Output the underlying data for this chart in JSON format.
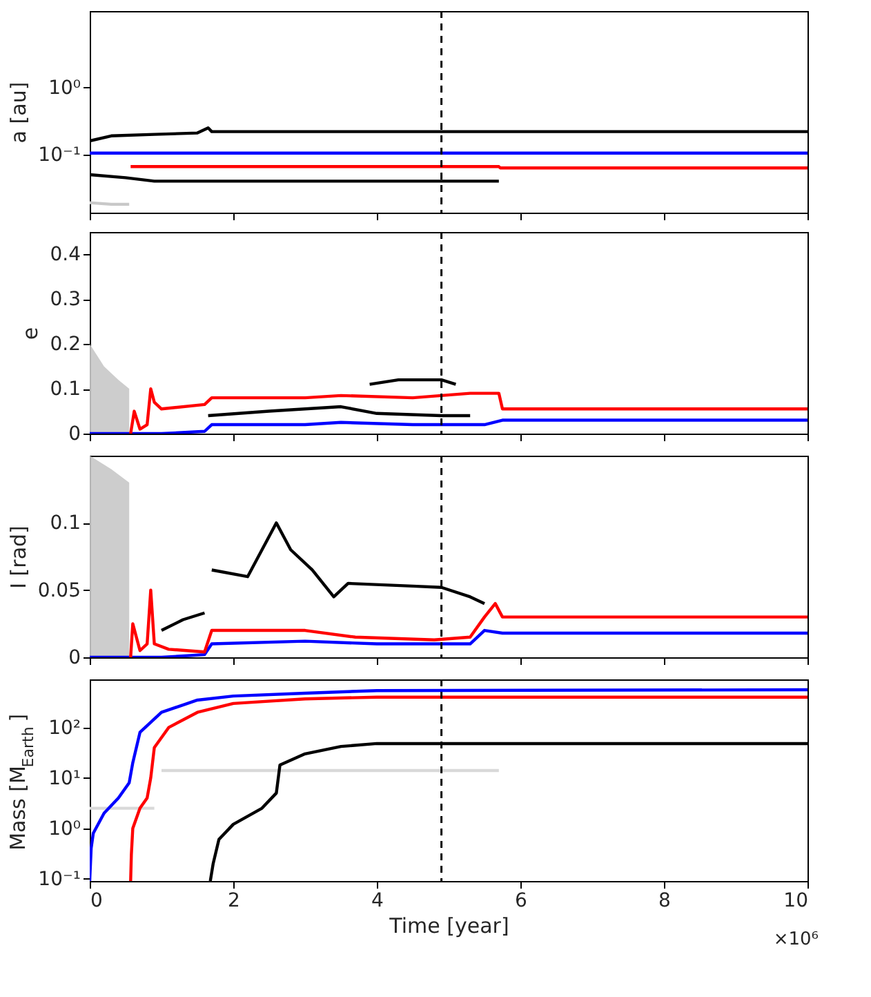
{
  "chart_data": [
    {
      "type": "line",
      "ylabel": "a [au]",
      "log": "y",
      "xlim": [
        0,
        10
      ],
      "xticks": [
        0,
        2,
        4,
        6,
        8,
        10
      ],
      "ylim": [
        0.0135,
        14
      ],
      "yticks": [
        {
          "value": 0.1,
          "label": "10⁻¹"
        },
        {
          "value": 1,
          "label": "10⁰"
        }
      ],
      "tick_labels": "y",
      "grid": false,
      "ref_lines": [
        {
          "axis": "x",
          "value": 4.9,
          "color": "#000000",
          "line_style": "dashed"
        }
      ],
      "series": [
        {
          "color": "#c8c8c8",
          "x": [
            0,
            0.3,
            0.55
          ],
          "values": [
            0.019,
            0.018,
            0.018
          ]
        },
        {
          "color": "#000000",
          "x": [
            0,
            0.3,
            0.9,
            1.5,
            1.65,
            1.7,
            5,
            10
          ],
          "values": [
            0.16,
            0.19,
            0.2,
            0.21,
            0.25,
            0.22,
            0.22,
            0.22
          ]
        },
        {
          "color": "#000000",
          "x": [
            0,
            0.5,
            0.9,
            3,
            5.7
          ],
          "values": [
            0.05,
            0.045,
            0.04,
            0.04,
            0.04
          ]
        },
        {
          "color": "#0000ff",
          "x": [
            0,
            2,
            4,
            6,
            8,
            10
          ],
          "values": [
            0.105,
            0.105,
            0.105,
            0.105,
            0.105,
            0.105
          ]
        },
        {
          "color": "#ff0000",
          "x": [
            0.57,
            2,
            4,
            5.7,
            5.72,
            8,
            10
          ],
          "values": [
            0.066,
            0.066,
            0.066,
            0.066,
            0.063,
            0.063,
            0.063
          ]
        }
      ]
    },
    {
      "type": "line",
      "ylabel": "e",
      "xlim": [
        0,
        10
      ],
      "xticks": [
        0,
        2,
        4,
        6,
        8,
        10
      ],
      "ylim": [
        0,
        0.45
      ],
      "yticks": [
        0,
        0.1,
        0.2,
        0.3,
        0.4
      ],
      "tick_labels": "y",
      "grid": false,
      "ref_lines": [
        {
          "axis": "x",
          "value": 4.9,
          "color": "#000000",
          "line_style": "dashed"
        }
      ],
      "series": [
        {
          "type": "area",
          "color": "#c8c8c8",
          "x": [
            0,
            0.2,
            0.4,
            0.55
          ],
          "values": [
            0.2,
            0.15,
            0.12,
            0.1
          ]
        },
        {
          "color": "#000000",
          "x": [
            1.65,
            2.5,
            3.5,
            4,
            4.9,
            5.3
          ],
          "values": [
            0.04,
            0.05,
            0.06,
            0.045,
            0.04,
            0.04
          ]
        },
        {
          "color": "#000000",
          "x": [
            3.9,
            4.3,
            4.9,
            5.1
          ],
          "values": [
            0.11,
            0.12,
            0.12,
            0.11
          ]
        },
        {
          "color": "#0000ff",
          "x": [
            0,
            1,
            1.6,
            1.7,
            3,
            3.5,
            4.5,
            5.5,
            5.75,
            8,
            10
          ],
          "values": [
            0,
            0,
            0.005,
            0.02,
            0.02,
            0.025,
            0.02,
            0.02,
            0.03,
            0.03,
            0.03
          ]
        },
        {
          "color": "#ff0000",
          "x": [
            0.57,
            0.62,
            0.7,
            0.8,
            0.85,
            0.9,
            1,
            1.6,
            1.7,
            3,
            3.5,
            4.5,
            5.3,
            5.7,
            5.75,
            8,
            10
          ],
          "values": [
            0,
            0.05,
            0.01,
            0.02,
            0.1,
            0.07,
            0.055,
            0.065,
            0.08,
            0.08,
            0.085,
            0.08,
            0.09,
            0.09,
            0.055,
            0.055,
            0.055
          ]
        }
      ]
    },
    {
      "type": "line",
      "ylabel": "I [rad]",
      "xlim": [
        0,
        10
      ],
      "xticks": [
        0,
        2,
        4,
        6,
        8,
        10
      ],
      "ylim": [
        0,
        0.15
      ],
      "yticks": [
        0,
        0.05,
        0.1
      ],
      "tick_labels": "y",
      "grid": false,
      "ref_lines": [
        {
          "axis": "x",
          "value": 4.9,
          "color": "#000000",
          "line_style": "dashed"
        }
      ],
      "series": [
        {
          "type": "area",
          "color": "#c8c8c8",
          "x": [
            0,
            0.3,
            0.55
          ],
          "values": [
            0.15,
            0.14,
            0.13
          ]
        },
        {
          "color": "#000000",
          "x": [
            1,
            1.3,
            1.6
          ],
          "values": [
            0.02,
            0.028,
            0.033
          ]
        },
        {
          "color": "#000000",
          "x": [
            1.7,
            2.2,
            2.6,
            2.8,
            3.1,
            3.4,
            3.6,
            4.5,
            4.9,
            5.3,
            5.5
          ],
          "values": [
            0.065,
            0.06,
            0.1,
            0.08,
            0.065,
            0.045,
            0.055,
            0.053,
            0.052,
            0.045,
            0.04
          ]
        },
        {
          "color": "#0000ff",
          "x": [
            0,
            1,
            1.6,
            1.7,
            3,
            4,
            5.3,
            5.5,
            5.75,
            8,
            10
          ],
          "values": [
            0,
            0,
            0.002,
            0.01,
            0.012,
            0.01,
            0.01,
            0.02,
            0.018,
            0.018,
            0.018
          ]
        },
        {
          "color": "#ff0000",
          "x": [
            0.57,
            0.6,
            0.7,
            0.8,
            0.85,
            0.9,
            1.1,
            1.6,
            1.7,
            3,
            3.7,
            4.8,
            5.3,
            5.5,
            5.65,
            5.75,
            8,
            10
          ],
          "values": [
            0,
            0.025,
            0.005,
            0.01,
            0.05,
            0.01,
            0.006,
            0.004,
            0.02,
            0.02,
            0.015,
            0.013,
            0.015,
            0.03,
            0.04,
            0.03,
            0.03,
            0.03
          ]
        }
      ]
    },
    {
      "type": "line",
      "xlabel": "Time [year]",
      "ylabel": "Mass [M$_{Earth}$]",
      "log": "y",
      "xlim": [
        0,
        10
      ],
      "xticks": [
        0,
        2,
        4,
        6,
        8,
        10
      ],
      "ylim": [
        0.09,
        900
      ],
      "yticks": [
        {
          "value": 0.1,
          "label": "10⁻¹"
        },
        {
          "value": 1,
          "label": "10⁰"
        },
        {
          "value": 10,
          "label": "10¹"
        },
        {
          "value": 100,
          "label": "10²"
        }
      ],
      "grid": false,
      "annotations": [
        "×10⁶"
      ],
      "ref_lines": [
        {
          "axis": "x",
          "value": 4.9,
          "color": "#000000",
          "line_style": "dashed"
        }
      ],
      "series": [
        {
          "color": "#d9d9d9",
          "x": [
            1.0,
            3,
            5.7
          ],
          "values": [
            14,
            14,
            14
          ]
        },
        {
          "color": "#d9d9d9",
          "x": [
            0,
            0.5,
            0.9
          ],
          "values": [
            2.5,
            2.5,
            2.5
          ]
        },
        {
          "color": "#000000",
          "x": [
            1.68,
            1.72,
            1.8,
            2,
            2.4,
            2.6,
            2.65,
            3,
            3.5,
            4,
            10
          ],
          "values": [
            0.09,
            0.2,
            0.6,
            1.2,
            2.5,
            5,
            18,
            30,
            42,
            48,
            48
          ]
        },
        {
          "color": "#0000ff",
          "x": [
            0,
            0.02,
            0.05,
            0.2,
            0.4,
            0.55,
            0.6,
            0.7,
            1,
            1.5,
            2,
            3,
            4,
            10
          ],
          "values": [
            0.09,
            0.4,
            0.8,
            2,
            4,
            8,
            20,
            80,
            200,
            350,
            420,
            480,
            540,
            560
          ]
        },
        {
          "color": "#ff0000",
          "x": [
            0.57,
            0.58,
            0.6,
            0.7,
            0.8,
            0.85,
            0.9,
            1.1,
            1.5,
            2,
            3,
            4,
            10
          ],
          "values": [
            0.09,
            0.3,
            1,
            2.5,
            4,
            10,
            40,
            100,
            200,
            300,
            370,
            400,
            400
          ]
        }
      ]
    }
  ]
}
